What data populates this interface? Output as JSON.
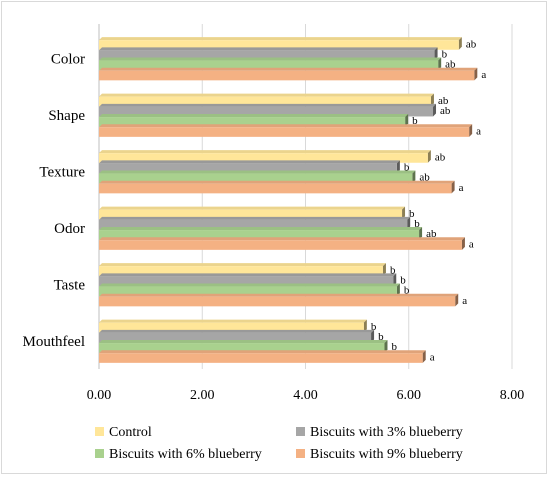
{
  "chart_data": {
    "type": "bar",
    "orientation": "horizontal",
    "categories": [
      "Color",
      "Shape",
      "Texture",
      "Odor",
      "Taste",
      "Mouthfeel"
    ],
    "series": [
      {
        "name": "Control",
        "color": "#ffe699",
        "values": [
          6.97,
          6.43,
          6.37,
          5.87,
          5.5,
          5.13
        ],
        "labels": [
          "ab",
          "ab",
          "ab",
          "b",
          "b",
          "b"
        ]
      },
      {
        "name": "Biscuits with 3% blueberry",
        "color": "#a6a6a6",
        "values": [
          6.5,
          6.47,
          5.77,
          5.97,
          5.7,
          5.27
        ],
        "labels": [
          "b",
          "ab",
          "b",
          "b",
          "b",
          "b"
        ]
      },
      {
        "name": "Biscuits with 6% blueberry",
        "color": "#a9d18e",
        "values": [
          6.57,
          5.93,
          6.07,
          6.2,
          5.77,
          5.53
        ],
        "labels": [
          "ab",
          "b",
          "ab",
          "ab",
          "b",
          "b"
        ]
      },
      {
        "name": "Biscuits with 9% blueberry",
        "color": "#f4b183",
        "values": [
          7.27,
          7.17,
          6.83,
          7.03,
          6.9,
          6.27
        ],
        "labels": [
          "a",
          "a",
          "a",
          "a",
          "a",
          "a"
        ]
      }
    ],
    "xlim": [
      0,
      8
    ],
    "xticks": [
      "0.00",
      "2.00",
      "4.00",
      "6.00",
      "8.00"
    ],
    "title": "",
    "xlabel": "",
    "ylabel": "",
    "grid": "vertical",
    "legend_position": "bottom"
  }
}
